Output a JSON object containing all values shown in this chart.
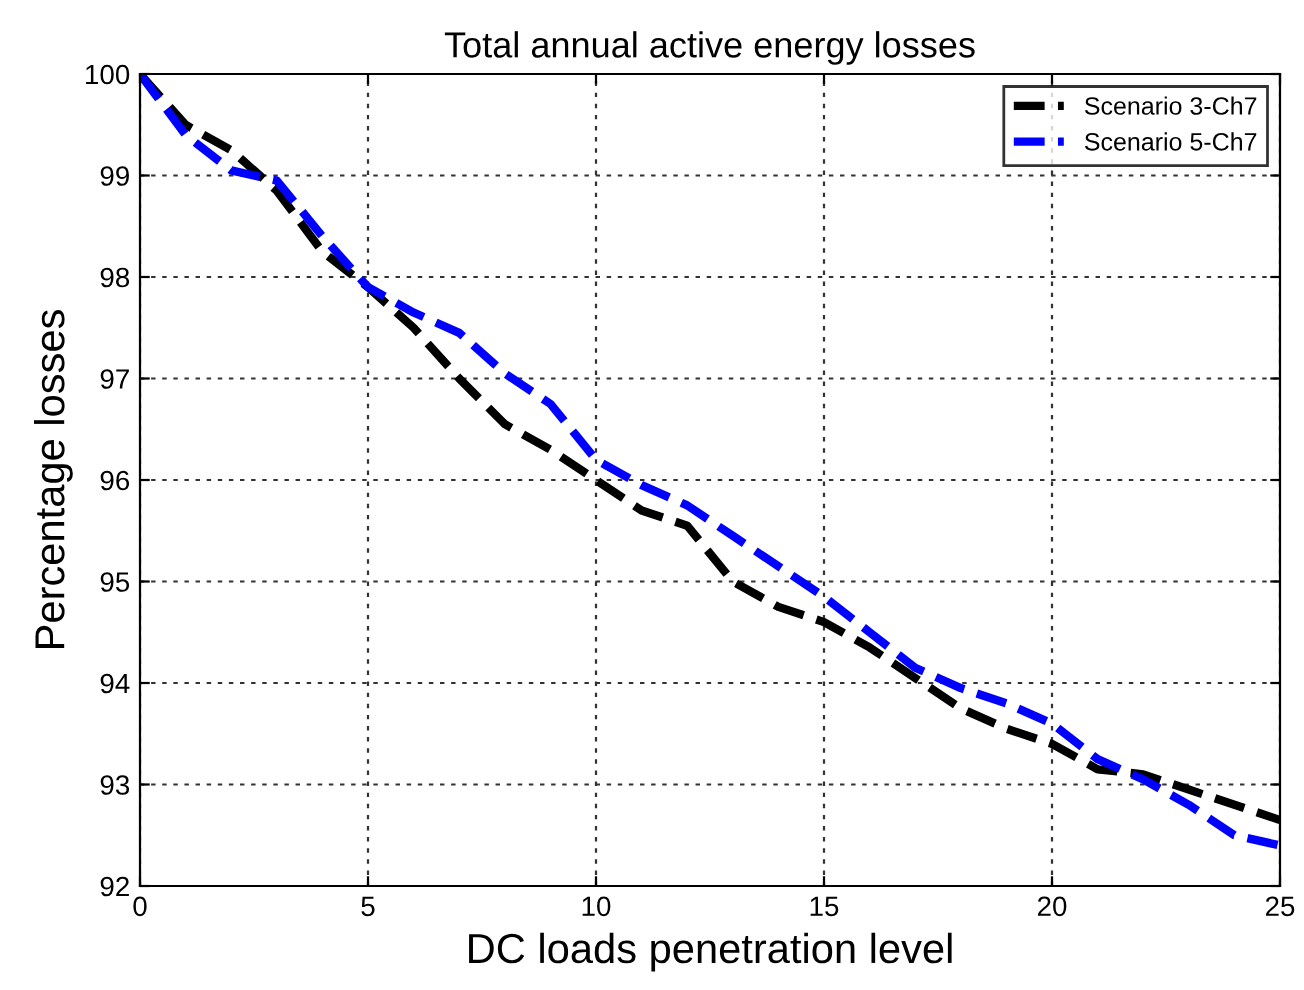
{
  "chart_data": {
    "type": "line",
    "title": "Total annual active energy losses",
    "xlabel": "DC loads penetration level",
    "ylabel": "Percentage losses",
    "x": [
      0,
      1,
      2,
      3,
      4,
      5,
      6,
      7,
      8,
      9,
      10,
      11,
      12,
      13,
      14,
      15,
      16,
      17,
      18,
      19,
      20,
      21,
      22,
      23,
      24,
      25
    ],
    "series": [
      {
        "name": "Scenario 3-Ch7",
        "color": "#000000",
        "values": [
          100,
          99.5,
          99.25,
          98.85,
          98.25,
          97.9,
          97.5,
          97.0,
          96.55,
          96.3,
          96.0,
          95.7,
          95.55,
          95.0,
          94.75,
          94.6,
          94.35,
          94.05,
          93.75,
          93.55,
          93.4,
          93.15,
          93.1,
          92.95,
          92.8,
          92.65
        ]
      },
      {
        "name": "Scenario 5-Ch7",
        "color": "#0000ff",
        "values": [
          100,
          99.4,
          99.05,
          98.95,
          98.4,
          97.9,
          97.65,
          97.45,
          97.05,
          96.75,
          96.2,
          95.95,
          95.75,
          95.45,
          95.15,
          94.85,
          94.5,
          94.15,
          93.95,
          93.8,
          93.6,
          93.25,
          93.05,
          92.8,
          92.5,
          92.4
        ]
      }
    ],
    "xlim": [
      0,
      25
    ],
    "xticks": [
      0,
      5,
      10,
      15,
      20,
      25
    ],
    "ylim": [
      92,
      100
    ],
    "yticks": [
      92,
      93,
      94,
      95,
      96,
      97,
      98,
      99,
      100
    ],
    "grid": true,
    "legend": "top right",
    "line_style": "dashed",
    "marker": "none"
  }
}
